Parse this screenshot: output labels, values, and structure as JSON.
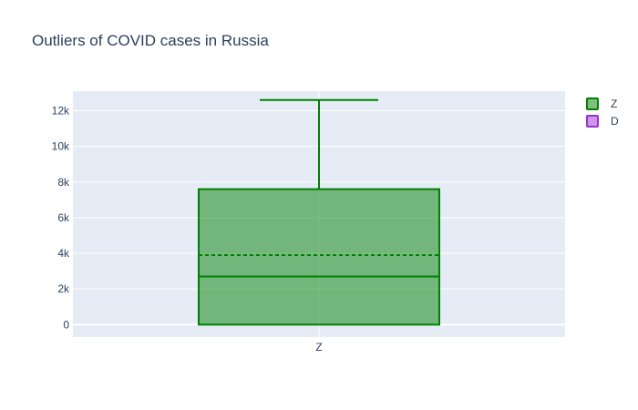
{
  "chart_data": {
    "type": "box",
    "title": "Outliers of COVID cases in Russia",
    "xlabel": "",
    "ylabel": "",
    "categories": [
      "Z"
    ],
    "ylim": [
      -700,
      13100
    ],
    "yticks": [
      {
        "value": 0,
        "label": "0"
      },
      {
        "value": 2000,
        "label": "2k"
      },
      {
        "value": 4000,
        "label": "4k"
      },
      {
        "value": 6000,
        "label": "6k"
      },
      {
        "value": 8000,
        "label": "8k"
      },
      {
        "value": 10000,
        "label": "10k"
      },
      {
        "value": 12000,
        "label": "12k"
      }
    ],
    "series": [
      {
        "name": "Z",
        "category": "Z",
        "color": "#008000",
        "min": 0,
        "q1": 0,
        "median": 2700,
        "mean": 3900,
        "q3": 7600,
        "max": 12600
      },
      {
        "name": "D",
        "color": "#9932cc",
        "empty": true
      }
    ],
    "grid": true,
    "legend_position": "top-right",
    "colors": {
      "plot_bg": "#e5ecf6",
      "grid": "#ffffff",
      "text": "#2a3f5f"
    }
  }
}
